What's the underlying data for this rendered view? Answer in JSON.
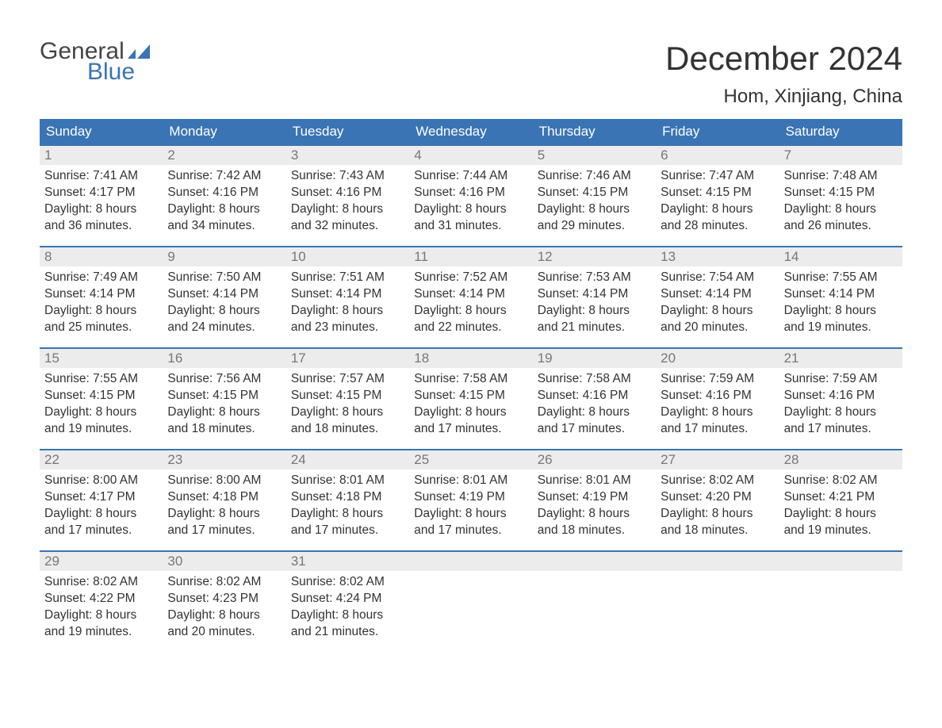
{
  "brand": {
    "line1": "General",
    "line2": "Blue"
  },
  "title": "December 2024",
  "location": "Hom, Xinjiang, China",
  "colors": {
    "header_bg": "#3a74b4",
    "header_text": "#ffffff",
    "daynum_bg": "#ececec",
    "daynum_text": "#777777",
    "body_text": "#333333",
    "rule": "#3a74b4"
  },
  "days_of_week": [
    "Sunday",
    "Monday",
    "Tuesday",
    "Wednesday",
    "Thursday",
    "Friday",
    "Saturday"
  ],
  "labels": {
    "sunrise": "Sunrise:",
    "sunset": "Sunset:",
    "daylight_prefix": "Daylight:"
  },
  "weeks": [
    [
      {
        "n": "1",
        "sunrise": "7:41 AM",
        "sunset": "4:17 PM",
        "daylight": "8 hours and 36 minutes."
      },
      {
        "n": "2",
        "sunrise": "7:42 AM",
        "sunset": "4:16 PM",
        "daylight": "8 hours and 34 minutes."
      },
      {
        "n": "3",
        "sunrise": "7:43 AM",
        "sunset": "4:16 PM",
        "daylight": "8 hours and 32 minutes."
      },
      {
        "n": "4",
        "sunrise": "7:44 AM",
        "sunset": "4:16 PM",
        "daylight": "8 hours and 31 minutes."
      },
      {
        "n": "5",
        "sunrise": "7:46 AM",
        "sunset": "4:15 PM",
        "daylight": "8 hours and 29 minutes."
      },
      {
        "n": "6",
        "sunrise": "7:47 AM",
        "sunset": "4:15 PM",
        "daylight": "8 hours and 28 minutes."
      },
      {
        "n": "7",
        "sunrise": "7:48 AM",
        "sunset": "4:15 PM",
        "daylight": "8 hours and 26 minutes."
      }
    ],
    [
      {
        "n": "8",
        "sunrise": "7:49 AM",
        "sunset": "4:14 PM",
        "daylight": "8 hours and 25 minutes."
      },
      {
        "n": "9",
        "sunrise": "7:50 AM",
        "sunset": "4:14 PM",
        "daylight": "8 hours and 24 minutes."
      },
      {
        "n": "10",
        "sunrise": "7:51 AM",
        "sunset": "4:14 PM",
        "daylight": "8 hours and 23 minutes."
      },
      {
        "n": "11",
        "sunrise": "7:52 AM",
        "sunset": "4:14 PM",
        "daylight": "8 hours and 22 minutes."
      },
      {
        "n": "12",
        "sunrise": "7:53 AM",
        "sunset": "4:14 PM",
        "daylight": "8 hours and 21 minutes."
      },
      {
        "n": "13",
        "sunrise": "7:54 AM",
        "sunset": "4:14 PM",
        "daylight": "8 hours and 20 minutes."
      },
      {
        "n": "14",
        "sunrise": "7:55 AM",
        "sunset": "4:14 PM",
        "daylight": "8 hours and 19 minutes."
      }
    ],
    [
      {
        "n": "15",
        "sunrise": "7:55 AM",
        "sunset": "4:15 PM",
        "daylight": "8 hours and 19 minutes."
      },
      {
        "n": "16",
        "sunrise": "7:56 AM",
        "sunset": "4:15 PM",
        "daylight": "8 hours and 18 minutes."
      },
      {
        "n": "17",
        "sunrise": "7:57 AM",
        "sunset": "4:15 PM",
        "daylight": "8 hours and 18 minutes."
      },
      {
        "n": "18",
        "sunrise": "7:58 AM",
        "sunset": "4:15 PM",
        "daylight": "8 hours and 17 minutes."
      },
      {
        "n": "19",
        "sunrise": "7:58 AM",
        "sunset": "4:16 PM",
        "daylight": "8 hours and 17 minutes."
      },
      {
        "n": "20",
        "sunrise": "7:59 AM",
        "sunset": "4:16 PM",
        "daylight": "8 hours and 17 minutes."
      },
      {
        "n": "21",
        "sunrise": "7:59 AM",
        "sunset": "4:16 PM",
        "daylight": "8 hours and 17 minutes."
      }
    ],
    [
      {
        "n": "22",
        "sunrise": "8:00 AM",
        "sunset": "4:17 PM",
        "daylight": "8 hours and 17 minutes."
      },
      {
        "n": "23",
        "sunrise": "8:00 AM",
        "sunset": "4:18 PM",
        "daylight": "8 hours and 17 minutes."
      },
      {
        "n": "24",
        "sunrise": "8:01 AM",
        "sunset": "4:18 PM",
        "daylight": "8 hours and 17 minutes."
      },
      {
        "n": "25",
        "sunrise": "8:01 AM",
        "sunset": "4:19 PM",
        "daylight": "8 hours and 17 minutes."
      },
      {
        "n": "26",
        "sunrise": "8:01 AM",
        "sunset": "4:19 PM",
        "daylight": "8 hours and 18 minutes."
      },
      {
        "n": "27",
        "sunrise": "8:02 AM",
        "sunset": "4:20 PM",
        "daylight": "8 hours and 18 minutes."
      },
      {
        "n": "28",
        "sunrise": "8:02 AM",
        "sunset": "4:21 PM",
        "daylight": "8 hours and 19 minutes."
      }
    ],
    [
      {
        "n": "29",
        "sunrise": "8:02 AM",
        "sunset": "4:22 PM",
        "daylight": "8 hours and 19 minutes."
      },
      {
        "n": "30",
        "sunrise": "8:02 AM",
        "sunset": "4:23 PM",
        "daylight": "8 hours and 20 minutes."
      },
      {
        "n": "31",
        "sunrise": "8:02 AM",
        "sunset": "4:24 PM",
        "daylight": "8 hours and 21 minutes."
      },
      null,
      null,
      null,
      null
    ]
  ]
}
